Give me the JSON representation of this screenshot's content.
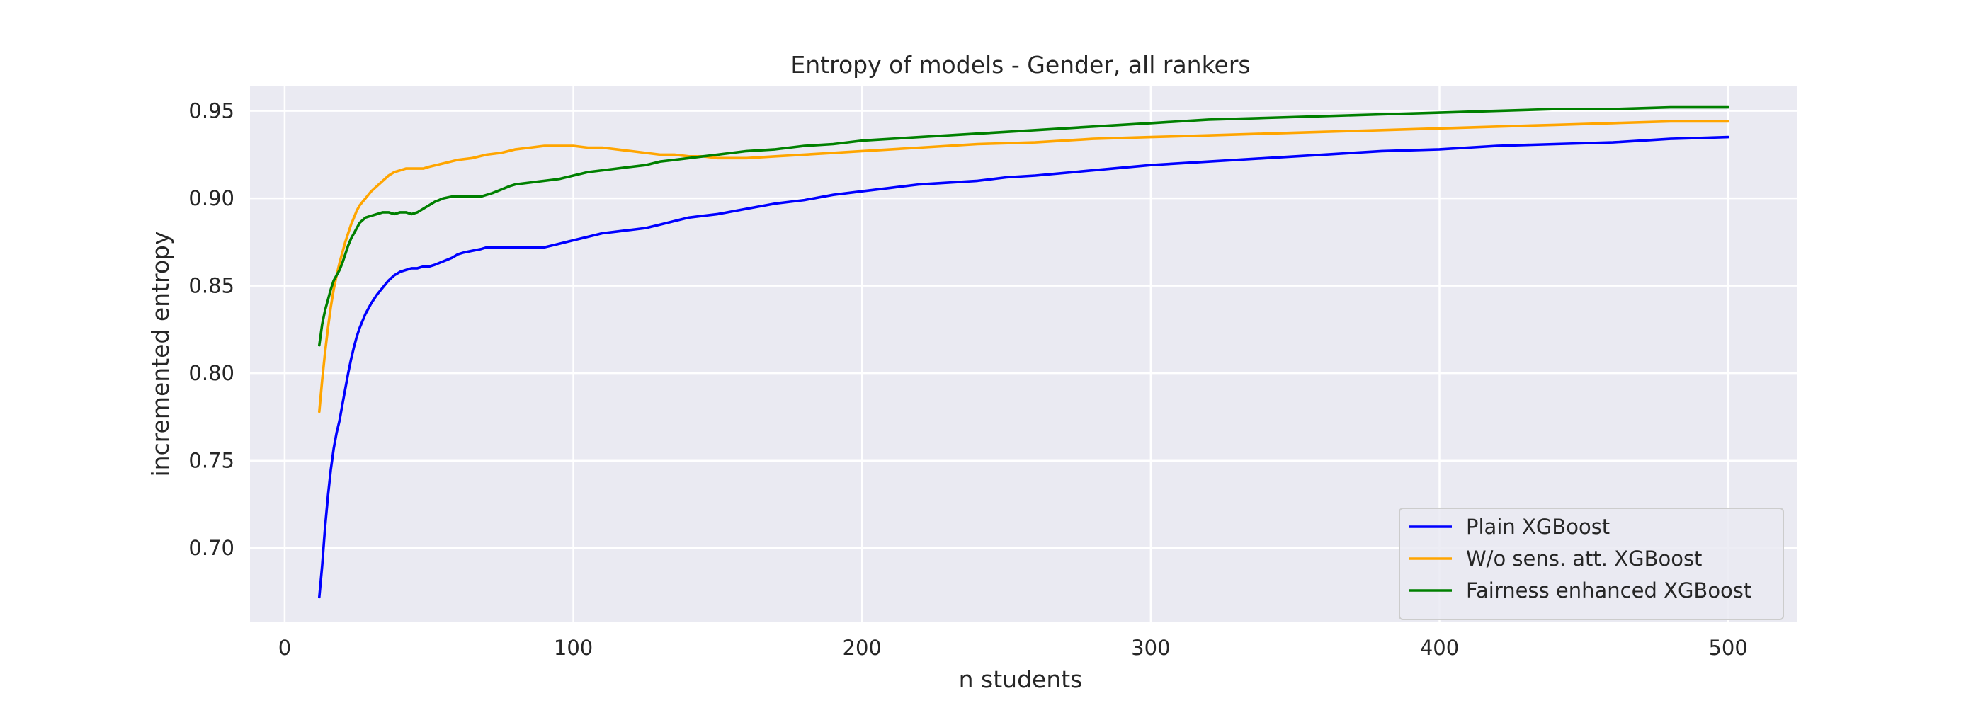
{
  "chart_data": {
    "type": "line",
    "title": "Entropy of models - Gender, all rankers",
    "xlabel": "n students",
    "ylabel": "incremented entropy",
    "xlim": [
      -12,
      524
    ],
    "ylim": [
      0.658,
      0.964
    ],
    "xticks": [
      0,
      100,
      200,
      300,
      400,
      500
    ],
    "xtick_labels": [
      "0",
      "100",
      "200",
      "300",
      "400",
      "500"
    ],
    "yticks": [
      0.7,
      0.75,
      0.8,
      0.85,
      0.9,
      0.95
    ],
    "ytick_labels": [
      "0.70",
      "0.75",
      "0.80",
      "0.85",
      "0.90",
      "0.95"
    ],
    "grid": true,
    "legend_position": "lower-right",
    "series": [
      {
        "name": "Plain XGBoost",
        "color": "#0000ff",
        "x": [
          12,
          13,
          14,
          15,
          16,
          17,
          18,
          19,
          20,
          21,
          22,
          23,
          24,
          25,
          26,
          28,
          30,
          32,
          34,
          36,
          38,
          40,
          42,
          44,
          46,
          48,
          50,
          52,
          55,
          58,
          60,
          62,
          65,
          68,
          70,
          72,
          75,
          78,
          80,
          85,
          90,
          95,
          100,
          105,
          110,
          115,
          120,
          125,
          130,
          135,
          140,
          145,
          150,
          160,
          170,
          180,
          190,
          200,
          210,
          220,
          230,
          240,
          250,
          260,
          280,
          300,
          320,
          340,
          360,
          380,
          400,
          420,
          440,
          460,
          480,
          500
        ],
        "values": [
          0.672,
          0.69,
          0.712,
          0.73,
          0.745,
          0.757,
          0.766,
          0.773,
          0.782,
          0.791,
          0.8,
          0.808,
          0.815,
          0.821,
          0.826,
          0.834,
          0.84,
          0.845,
          0.849,
          0.853,
          0.856,
          0.858,
          0.859,
          0.86,
          0.86,
          0.861,
          0.861,
          0.862,
          0.864,
          0.866,
          0.868,
          0.869,
          0.87,
          0.871,
          0.872,
          0.872,
          0.872,
          0.872,
          0.872,
          0.872,
          0.872,
          0.874,
          0.876,
          0.878,
          0.88,
          0.881,
          0.882,
          0.883,
          0.885,
          0.887,
          0.889,
          0.89,
          0.891,
          0.894,
          0.897,
          0.899,
          0.902,
          0.904,
          0.906,
          0.908,
          0.909,
          0.91,
          0.912,
          0.913,
          0.916,
          0.919,
          0.921,
          0.923,
          0.925,
          0.927,
          0.928,
          0.93,
          0.931,
          0.932,
          0.934,
          0.935
        ]
      },
      {
        "name": "W/o sens. att. XGBoost",
        "color": "#ffa500",
        "x": [
          12,
          13,
          14,
          15,
          16,
          17,
          18,
          19,
          20,
          21,
          22,
          23,
          24,
          25,
          26,
          28,
          30,
          32,
          34,
          36,
          38,
          40,
          42,
          44,
          46,
          48,
          50,
          55,
          60,
          65,
          70,
          75,
          80,
          85,
          90,
          95,
          100,
          105,
          110,
          115,
          120,
          125,
          130,
          135,
          140,
          145,
          150,
          155,
          160,
          170,
          180,
          190,
          200,
          220,
          240,
          260,
          280,
          300,
          320,
          340,
          360,
          380,
          400,
          420,
          440,
          460,
          480,
          500
        ],
        "values": [
          0.778,
          0.796,
          0.812,
          0.826,
          0.838,
          0.848,
          0.856,
          0.863,
          0.869,
          0.875,
          0.88,
          0.885,
          0.889,
          0.893,
          0.896,
          0.9,
          0.904,
          0.907,
          0.91,
          0.913,
          0.915,
          0.916,
          0.917,
          0.917,
          0.917,
          0.917,
          0.918,
          0.92,
          0.922,
          0.923,
          0.925,
          0.926,
          0.928,
          0.929,
          0.93,
          0.93,
          0.93,
          0.929,
          0.929,
          0.928,
          0.927,
          0.926,
          0.925,
          0.925,
          0.924,
          0.924,
          0.923,
          0.923,
          0.923,
          0.924,
          0.925,
          0.926,
          0.927,
          0.929,
          0.931,
          0.932,
          0.934,
          0.935,
          0.936,
          0.937,
          0.938,
          0.939,
          0.94,
          0.941,
          0.942,
          0.943,
          0.944,
          0.944
        ]
      },
      {
        "name": "Fairness enhanced XGBoost",
        "color": "#008000",
        "x": [
          12,
          13,
          14,
          15,
          16,
          17,
          18,
          19,
          20,
          21,
          22,
          23,
          24,
          25,
          26,
          28,
          30,
          32,
          34,
          36,
          38,
          40,
          42,
          44,
          46,
          48,
          50,
          52,
          55,
          58,
          60,
          62,
          65,
          68,
          70,
          72,
          75,
          78,
          80,
          85,
          90,
          95,
          100,
          105,
          110,
          115,
          120,
          125,
          130,
          135,
          140,
          145,
          150,
          160,
          170,
          180,
          190,
          200,
          220,
          240,
          260,
          280,
          300,
          320,
          340,
          360,
          380,
          400,
          420,
          440,
          460,
          480,
          500
        ],
        "values": [
          0.816,
          0.828,
          0.836,
          0.842,
          0.848,
          0.853,
          0.856,
          0.859,
          0.863,
          0.868,
          0.873,
          0.877,
          0.88,
          0.883,
          0.886,
          0.889,
          0.89,
          0.891,
          0.892,
          0.892,
          0.891,
          0.892,
          0.892,
          0.891,
          0.892,
          0.894,
          0.896,
          0.898,
          0.9,
          0.901,
          0.901,
          0.901,
          0.901,
          0.901,
          0.902,
          0.903,
          0.905,
          0.907,
          0.908,
          0.909,
          0.91,
          0.911,
          0.913,
          0.915,
          0.916,
          0.917,
          0.918,
          0.919,
          0.921,
          0.922,
          0.923,
          0.924,
          0.925,
          0.927,
          0.928,
          0.93,
          0.931,
          0.933,
          0.935,
          0.937,
          0.939,
          0.941,
          0.943,
          0.945,
          0.946,
          0.947,
          0.948,
          0.949,
          0.95,
          0.951,
          0.951,
          0.952,
          0.952
        ]
      }
    ]
  }
}
